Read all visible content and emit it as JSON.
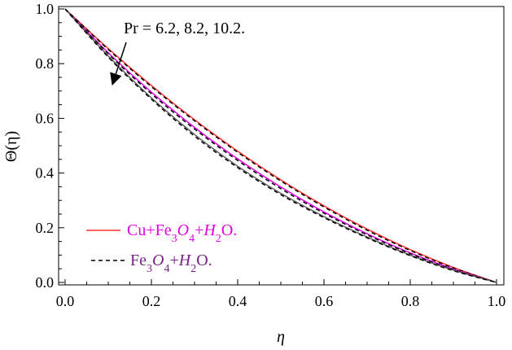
{
  "chart_data": {
    "type": "line",
    "xlabel": "η",
    "ylabel": "Θ(η)",
    "xlim": [
      0.0,
      1.0
    ],
    "ylim": [
      0.0,
      1.0
    ],
    "x_ticks": [
      "0.0",
      "0.2",
      "0.4",
      "0.6",
      "0.8",
      "1.0"
    ],
    "y_ticks": [
      "0.0",
      "0.2",
      "0.4",
      "0.6",
      "0.8",
      "1.0"
    ],
    "grid": false,
    "annotation": "Pr = 6.2, 8.2, 10.2.",
    "legend": {
      "placement": "bottom-left",
      "entries": [
        {
          "label_main": "Cu+Fe",
          "sub1": "3",
          "o": "O",
          "sub2": "4",
          "plus": "+",
          "h": "H",
          "sub3": "2",
          "tail": "O.",
          "color": "#ff3030",
          "text_color": "#e000e0",
          "dash": "solid"
        },
        {
          "label_main": "Fe",
          "sub1": "3",
          "o": "O",
          "sub2": "4",
          "plus": "+",
          "h": "H",
          "sub3": "2",
          "tail": "O.",
          "color": "#000000",
          "text_color": "#7a1f8a",
          "dash": "dashed"
        }
      ]
    },
    "x": [
      0.0,
      0.1,
      0.2,
      0.3,
      0.4,
      0.5,
      0.6,
      0.7,
      0.8,
      0.9,
      1.0
    ],
    "series": [
      {
        "group": "Cu+Fe3O4+H2O",
        "pr": 6.2,
        "color": "#ff3030",
        "dash": "solid",
        "values": [
          1.0,
          0.855,
          0.72,
          0.595,
          0.48,
          0.375,
          0.28,
          0.195,
          0.12,
          0.055,
          0.0
        ]
      },
      {
        "group": "Fe3O4+H2O",
        "pr": 6.2,
        "color": "#000000",
        "dash": "dashed",
        "values": [
          1.0,
          0.852,
          0.716,
          0.591,
          0.476,
          0.371,
          0.276,
          0.191,
          0.117,
          0.053,
          0.0
        ]
      },
      {
        "group": "Cu+Fe3O4+H2O",
        "pr": 8.2,
        "color": "#e000e0",
        "dash": "solid",
        "values": [
          1.0,
          0.84,
          0.696,
          0.567,
          0.452,
          0.349,
          0.258,
          0.178,
          0.108,
          0.049,
          0.0
        ]
      },
      {
        "group": "Fe3O4+H2O",
        "pr": 8.2,
        "color": "#000000",
        "dash": "dashed",
        "values": [
          1.0,
          0.836,
          0.69,
          0.561,
          0.446,
          0.343,
          0.253,
          0.174,
          0.105,
          0.047,
          0.0
        ]
      },
      {
        "group": "Cu+Fe3O4+H2O",
        "pr": 10.2,
        "color": "#606060",
        "dash": "solid",
        "values": [
          1.0,
          0.828,
          0.675,
          0.541,
          0.425,
          0.326,
          0.241,
          0.166,
          0.1,
          0.045,
          0.0
        ]
      },
      {
        "group": "Fe3O4+H2O",
        "pr": 10.2,
        "color": "#000000",
        "dash": "dashed",
        "values": [
          1.0,
          0.824,
          0.67,
          0.535,
          0.42,
          0.321,
          0.237,
          0.163,
          0.098,
          0.043,
          0.0
        ]
      }
    ]
  }
}
